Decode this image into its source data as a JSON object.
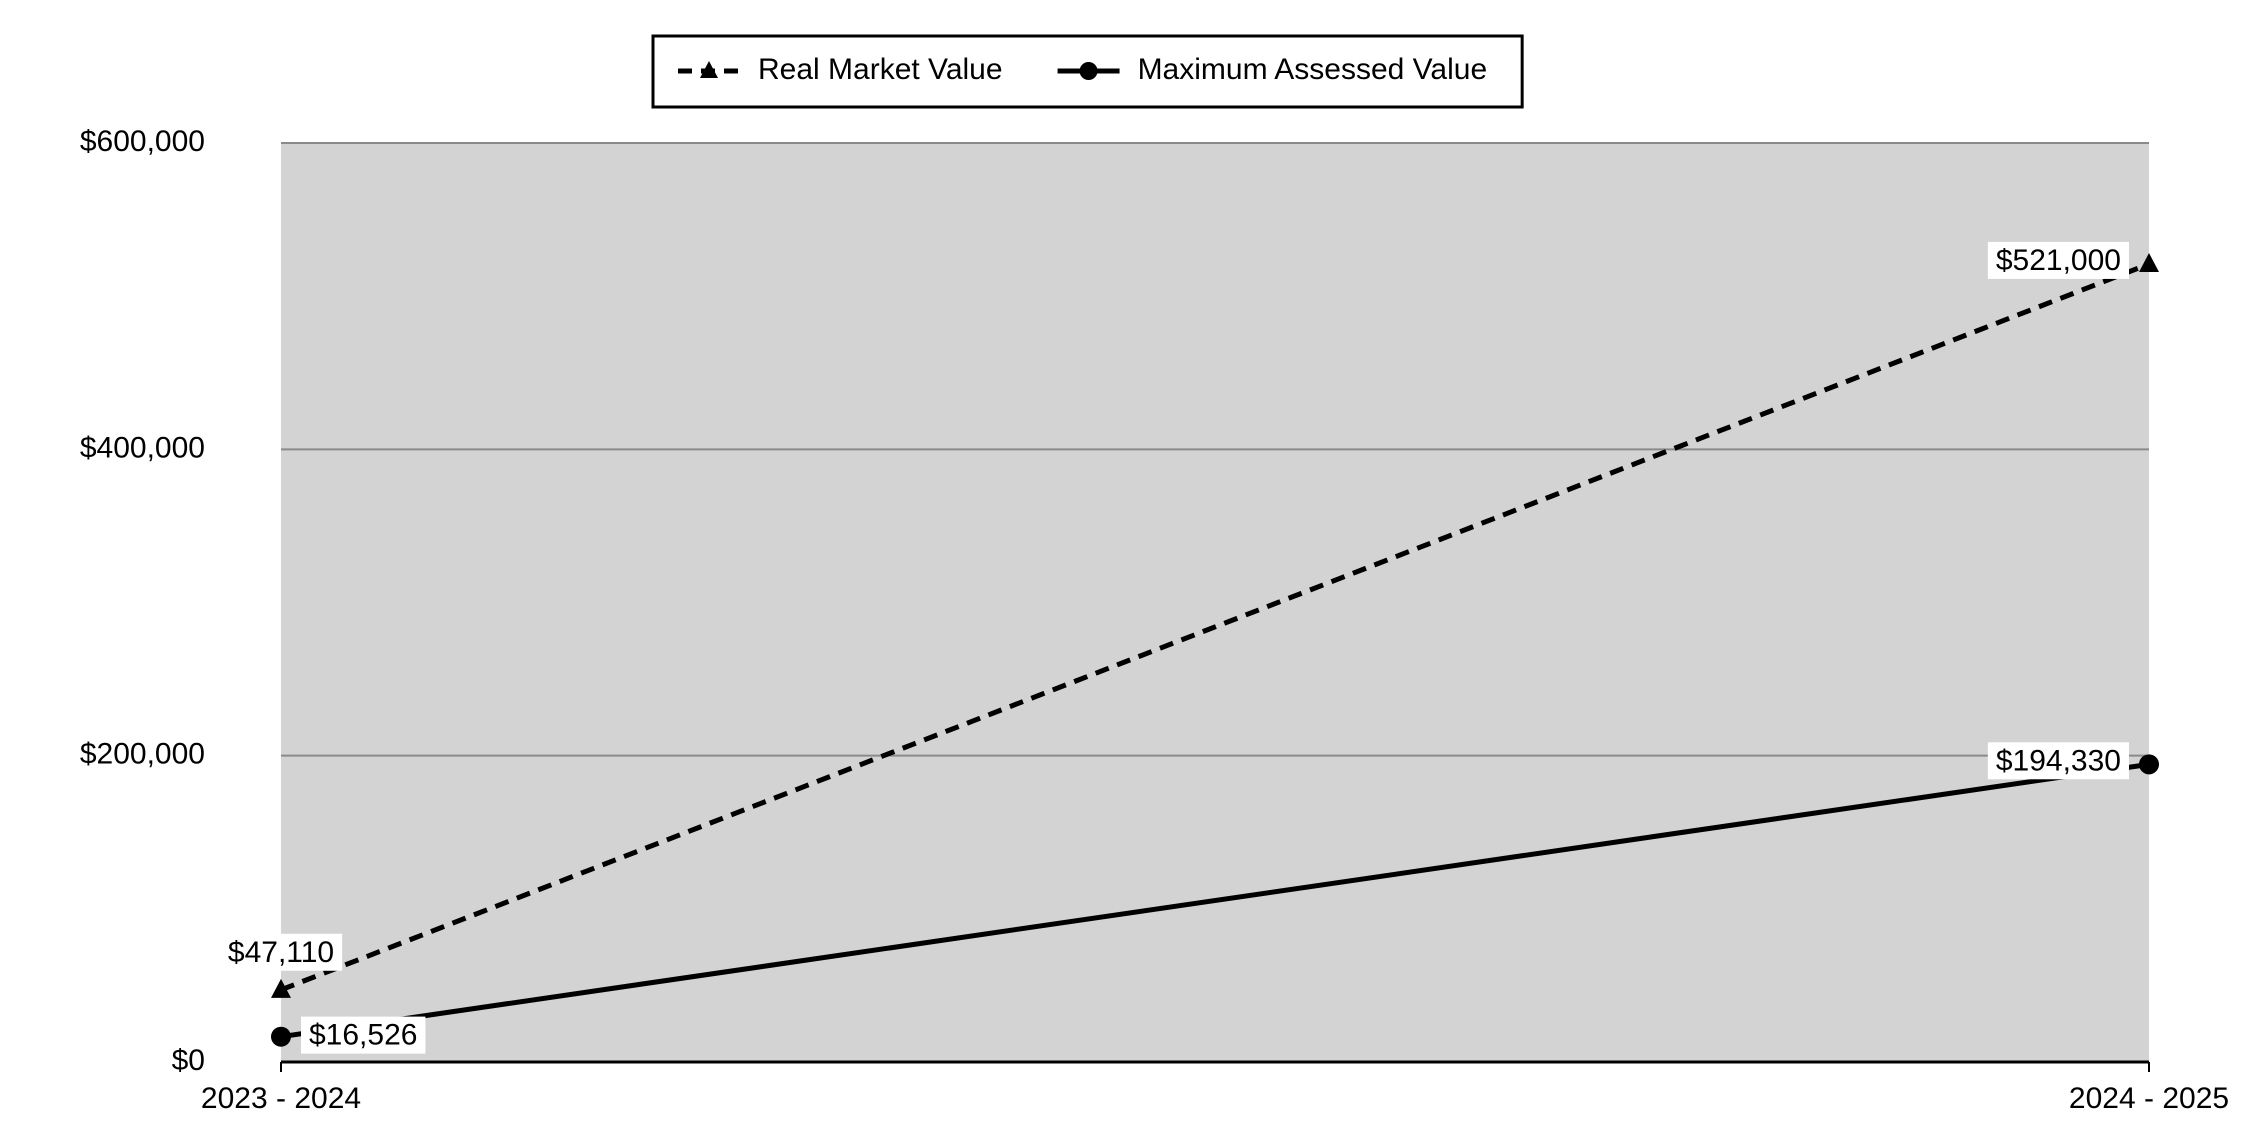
{
  "chart_data": {
    "type": "line",
    "categories": [
      "2023 - 2024",
      "2024 - 2025"
    ],
    "series": [
      {
        "name": "Real Market Value",
        "color": "#000000",
        "line_style": "dashed",
        "marker": "triangle",
        "values": [
          47110,
          521000
        ],
        "value_labels": [
          "$47,110",
          "$521,000"
        ]
      },
      {
        "name": "Maximum Assessed Value",
        "color": "#000000",
        "line_style": "solid",
        "marker": "circle",
        "values": [
          16526,
          194330
        ],
        "value_labels": [
          "$16,526",
          "$194,330"
        ]
      }
    ],
    "ylim": [
      0,
      600000
    ],
    "yticks": [
      {
        "value": 0,
        "label": "$0"
      },
      {
        "value": 200000,
        "label": "$200,000"
      },
      {
        "value": 400000,
        "label": "$400,000"
      },
      {
        "value": 600000,
        "label": "$600,000"
      }
    ],
    "grid": true,
    "legend": "top",
    "plot_background": "#d3d3d3"
  }
}
